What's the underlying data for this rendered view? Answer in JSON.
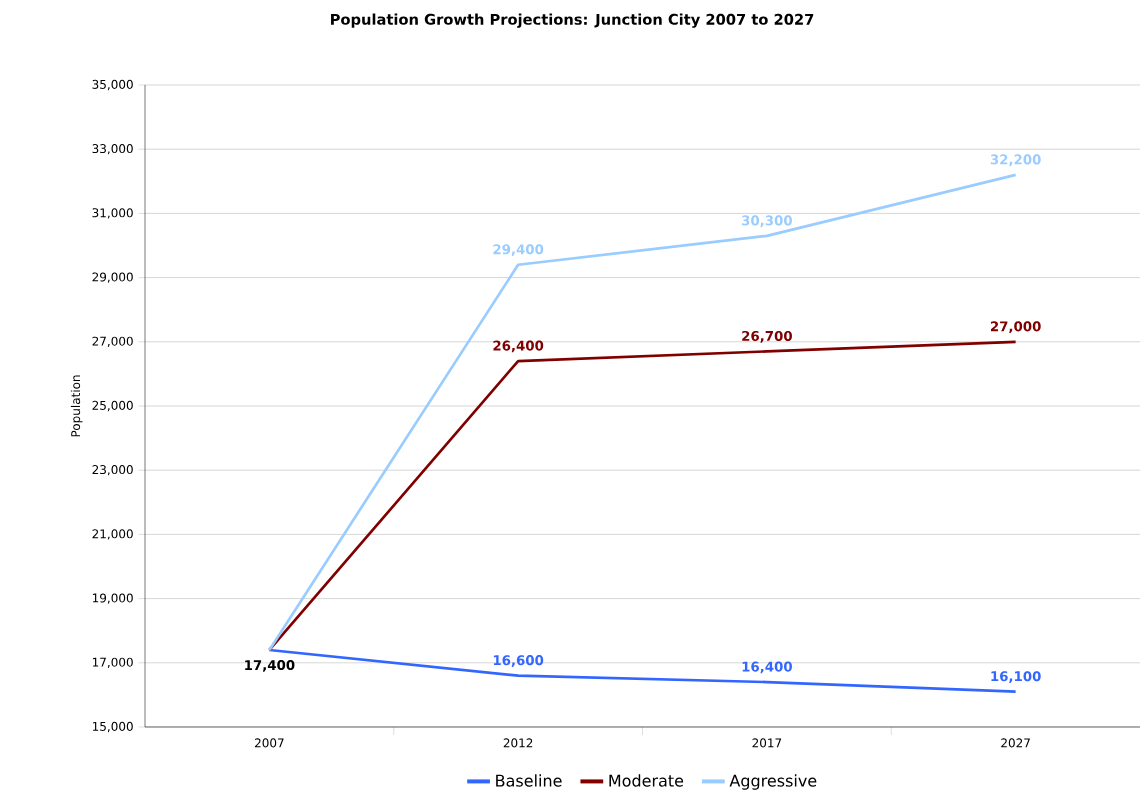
{
  "chart_data": {
    "type": "line",
    "title": "Population Growth Projections:  Junction City 2007 to 2027",
    "ylabel": "Population",
    "categories": [
      "2007",
      "2012",
      "2017",
      "2027"
    ],
    "series": [
      {
        "name": "Baseline",
        "color": "#3366ff",
        "values": [
          17400,
          16600,
          16400,
          16100
        ],
        "value_labels": [
          null,
          "16,600",
          "16,400",
          "16,100"
        ]
      },
      {
        "name": "Moderate",
        "color": "#800000",
        "values": [
          17400,
          26400,
          26700,
          27000
        ],
        "value_labels": [
          null,
          "26,400",
          "26,700",
          "27,000"
        ]
      },
      {
        "name": "Aggressive",
        "color": "#99ccff",
        "values": [
          17400,
          29400,
          30300,
          32200
        ],
        "value_labels": [
          null,
          "29,400",
          "30,300",
          "32,200"
        ]
      }
    ],
    "annotations": [
      {
        "text": "17,400",
        "x": "2007",
        "y": 17400
      }
    ],
    "ylim": [
      15000,
      35000
    ],
    "yticks": [
      {
        "value": 15000,
        "label": "15,000"
      },
      {
        "value": 17000,
        "label": "17,000"
      },
      {
        "value": 19000,
        "label": "19,000"
      },
      {
        "value": 21000,
        "label": "21,000"
      },
      {
        "value": 23000,
        "label": "23,000"
      },
      {
        "value": 25000,
        "label": "25,000"
      },
      {
        "value": 27000,
        "label": "27,000"
      },
      {
        "value": 29000,
        "label": "29,000"
      },
      {
        "value": 31000,
        "label": "31,000"
      },
      {
        "value": 33000,
        "label": "33,000"
      },
      {
        "value": 35000,
        "label": "35,000"
      }
    ],
    "grid": "y",
    "legend": "bottom",
    "marker": "none",
    "line_style": "solid"
  }
}
